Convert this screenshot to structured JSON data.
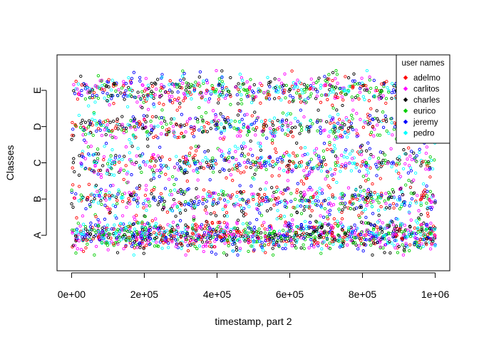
{
  "chart_data": {
    "type": "scatter",
    "title": "",
    "xlabel": "timestamp, part 2",
    "ylabel": "Classes",
    "x_ticks": [
      0,
      200000,
      400000,
      600000,
      800000,
      1000000
    ],
    "x_tick_labels": [
      "0e+00",
      "2e+05",
      "4e+05",
      "6e+05",
      "8e+05",
      "1e+06"
    ],
    "xlim": [
      -40000,
      1040000
    ],
    "y_categories": [
      "A",
      "B",
      "C",
      "D",
      "E"
    ],
    "ylim": [
      0.02,
      5.98
    ],
    "jitter_spread": 0.42,
    "points_per_class": [
      1300,
      600,
      550,
      550,
      650
    ],
    "marker": "open-circle",
    "grid": false,
    "legend": {
      "title": "user names",
      "position": "top-right",
      "marker": "filled-diamond",
      "entries": [
        {
          "name": "adelmo",
          "color": "#ff0000"
        },
        {
          "name": "carlitos",
          "color": "#ff00ff"
        },
        {
          "name": "charles",
          "color": "#000000"
        },
        {
          "name": "eurico",
          "color": "#00cd00"
        },
        {
          "name": "jeremy",
          "color": "#0000ff"
        },
        {
          "name": "pedro",
          "color": "#00ffff"
        }
      ]
    }
  }
}
